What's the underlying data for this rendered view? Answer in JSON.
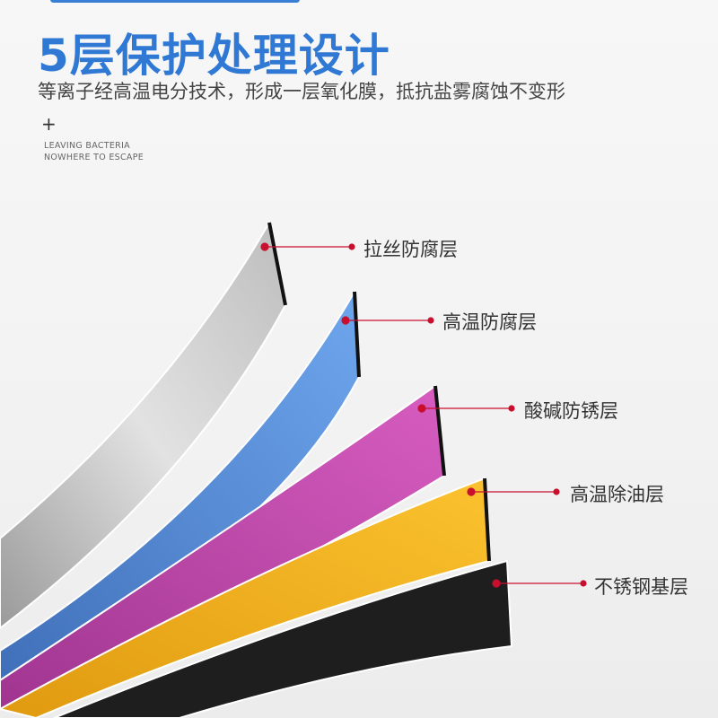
{
  "title": "5层保护处理设计",
  "subtitle": "等离子经高温电分技术，形成一层氧化膜，抵抗盐雾腐蚀不变形",
  "plus_symbol": "+",
  "tagline": [
    "LEAVING BACTERIA",
    "NOWHERE TO ESCAPE"
  ],
  "layers": [
    {
      "label": "拉丝防腐层",
      "color": "#c9c9c9"
    },
    {
      "label": "高温防腐层",
      "color": "#5f9ae4"
    },
    {
      "label": "酸碱防锈层",
      "color": "#c94fb0"
    },
    {
      "label": "高温除油层",
      "color": "#f2b624"
    },
    {
      "label": "不锈钢基层",
      "color": "#1e1e1e"
    }
  ],
  "colors": {
    "title": "#2f78d4",
    "marker": "#c8102e"
  }
}
